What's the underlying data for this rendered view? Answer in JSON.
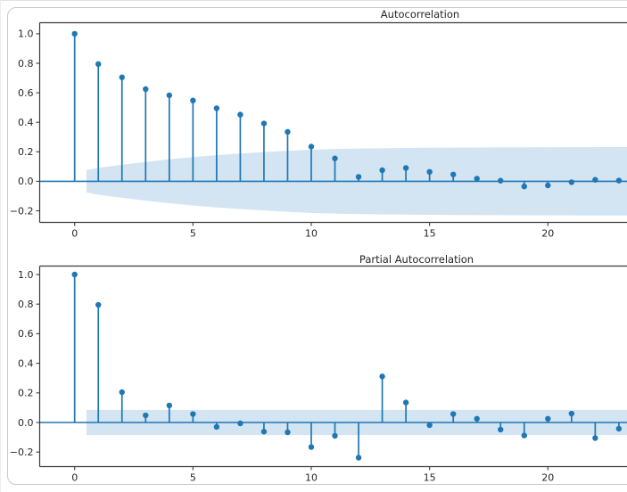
{
  "colors": {
    "accent": "#1f77b4",
    "band": "#d3e4f2",
    "spine": "#3b3b3b",
    "tick_text": "#262626"
  },
  "chart_data": [
    {
      "type": "stem",
      "title": "Autocorrelation",
      "x": [
        0,
        1,
        2,
        3,
        4,
        5,
        6,
        7,
        8,
        9,
        10,
        11,
        12,
        13,
        14,
        15,
        16,
        17,
        18,
        19,
        20,
        21,
        22,
        23
      ],
      "values": [
        1.0,
        0.795,
        0.705,
        0.625,
        0.583,
        0.548,
        0.495,
        0.452,
        0.392,
        0.335,
        0.235,
        0.155,
        0.03,
        0.075,
        0.09,
        0.064,
        0.046,
        0.018,
        0.004,
        -0.035,
        -0.028,
        -0.006,
        0.01,
        0.005
      ],
      "conf_band": {
        "x": [
          0.5,
          1,
          2,
          3,
          4,
          5,
          6,
          7,
          8,
          9,
          10,
          11,
          12,
          13,
          14,
          15,
          16,
          17,
          18,
          19,
          20,
          21,
          22,
          23,
          23.4
        ],
        "half_width": [
          0.075,
          0.091,
          0.112,
          0.131,
          0.149,
          0.164,
          0.177,
          0.188,
          0.198,
          0.207,
          0.214,
          0.219,
          0.222,
          0.224,
          0.226,
          0.2272,
          0.2282,
          0.229,
          0.2296,
          0.2301,
          0.2306,
          0.231,
          0.2314,
          0.2318,
          0.232
        ]
      },
      "xticks": [
        0,
        5,
        10,
        15,
        20
      ],
      "yticks": [
        1.0,
        0.8,
        0.6,
        0.4,
        0.2,
        0.0,
        -0.2
      ],
      "ylim": [
        -0.28,
        1.08
      ],
      "xlim": [
        -1.5,
        23.4
      ],
      "grid": false,
      "legend": null
    },
    {
      "type": "stem",
      "title": "Partial Autocorrelation",
      "x": [
        0,
        1,
        2,
        3,
        4,
        5,
        6,
        7,
        8,
        9,
        10,
        11,
        12,
        13,
        14,
        15,
        16,
        17,
        18,
        19,
        20,
        21,
        22,
        23
      ],
      "values": [
        1.0,
        0.795,
        0.205,
        0.048,
        0.115,
        0.057,
        -0.03,
        -0.006,
        -0.062,
        -0.066,
        -0.166,
        -0.09,
        -0.238,
        0.311,
        0.135,
        -0.018,
        0.057,
        0.025,
        -0.048,
        -0.088,
        0.025,
        0.06,
        -0.105,
        -0.042
      ],
      "conf_band": {
        "x": [
          0.5,
          23.4
        ],
        "half_width": [
          0.085,
          0.085
        ]
      },
      "xticks": [
        0,
        5,
        10,
        15,
        20
      ],
      "yticks": [
        1.0,
        0.8,
        0.6,
        0.4,
        0.2,
        0.0,
        -0.2
      ],
      "ylim": [
        -0.3,
        1.06
      ],
      "xlim": [
        -1.5,
        23.4
      ],
      "grid": false,
      "legend": null
    }
  ]
}
